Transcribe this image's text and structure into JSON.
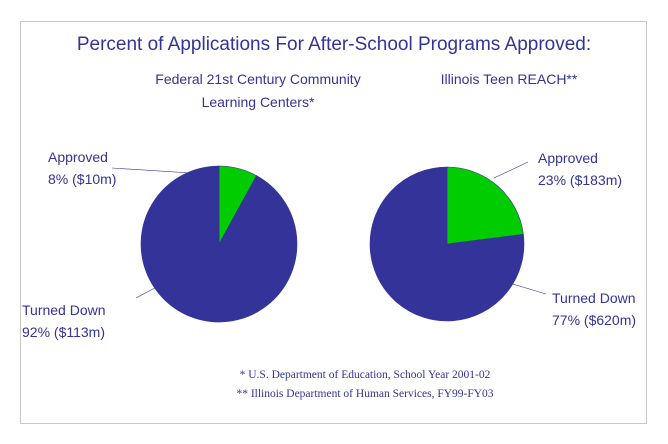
{
  "title": "Percent of Applications For After-School Programs Approved:",
  "chart_data": [
    {
      "type": "pie",
      "title": "Federal 21st Century Community Learning Centers*",
      "categories": [
        "Approved",
        "Turned Down"
      ],
      "values": [
        8,
        92
      ],
      "value_labels": [
        "8% ($10m)",
        "92% ($113m)"
      ],
      "colors": [
        "#00cc00",
        "#333399"
      ]
    },
    {
      "type": "pie",
      "title": "Illinois Teen REACH**",
      "categories": [
        "Approved",
        "Turned Down"
      ],
      "values": [
        23,
        77
      ],
      "value_labels": [
        "23% ($183m)",
        "77% ($620m)"
      ],
      "colors": [
        "#00cc00",
        "#333399"
      ]
    }
  ],
  "footnotes": [
    "* U.S. Department of Education, School Year 2001-02",
    "** Illinois Department of Human Services, FY99-FY03"
  ]
}
